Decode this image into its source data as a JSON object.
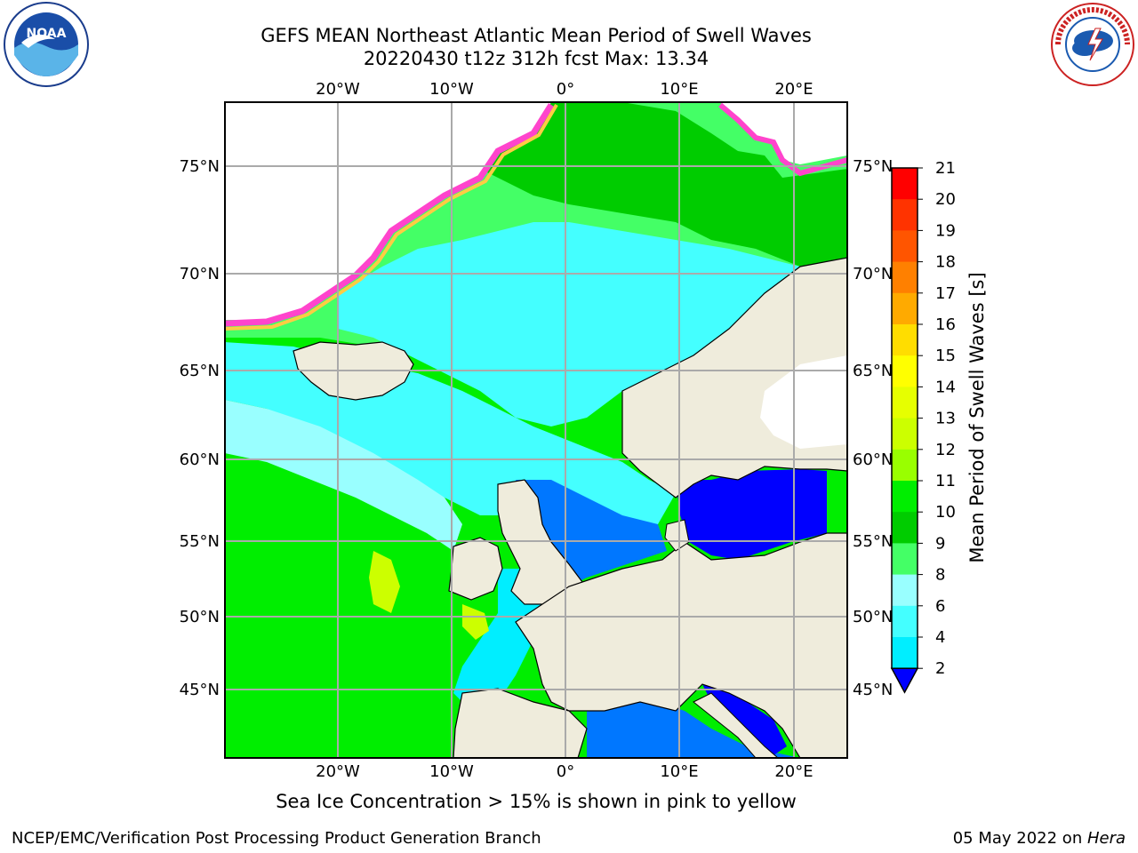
{
  "header": {
    "title_line1": "GEFS MEAN Northeast Atlantic Mean Period of Swell Waves",
    "title_line2": "20220430 t12z 312h fcst   Max: 13.34"
  },
  "map": {
    "lon_labels": [
      "20°W",
      "10°W",
      "0°",
      "10°E",
      "20°E"
    ],
    "lat_labels_left": [
      "75°N",
      "70°N",
      "65°N",
      "60°N",
      "55°N",
      "50°N",
      "45°N"
    ],
    "lat_labels_right": [
      "75°N",
      "70°N",
      "65°N",
      "60°N",
      "55°N",
      "50°N",
      "45°N"
    ],
    "colors": {
      "land": "#efecdc",
      "ice_white": "#ffffff",
      "grid": "#aaaaaa"
    }
  },
  "colorbar": {
    "label": "Mean Period of Swell Waves [s]",
    "ticks": [
      "21",
      "20",
      "19",
      "18",
      "17",
      "16",
      "15",
      "14",
      "13",
      "12",
      "11",
      "10",
      "9",
      "8",
      "6",
      "4",
      "2"
    ],
    "colors": [
      "#ff0000",
      "#ff3300",
      "#ff5500",
      "#ff8000",
      "#ffaa00",
      "#ffdd00",
      "#ffff00",
      "#e6ff00",
      "#ccff00",
      "#99ff00",
      "#00ee00",
      "#00cc00",
      "#44ff66",
      "#99ffff",
      "#44ffff",
      "#00eeff",
      "#0077ff",
      "#0000ff"
    ]
  },
  "note": "Sea Ice Concentration > 15% is shown in pink to yellow",
  "footer": {
    "left": "NCEP/EMC/Verification Post Processing Product Generation Branch",
    "right_date": "05 May 2022 on ",
    "right_host": "Hera"
  },
  "logos": {
    "noaa_text": "NOAA",
    "nws_text": "NATIONAL WEATHER SERVICE"
  }
}
